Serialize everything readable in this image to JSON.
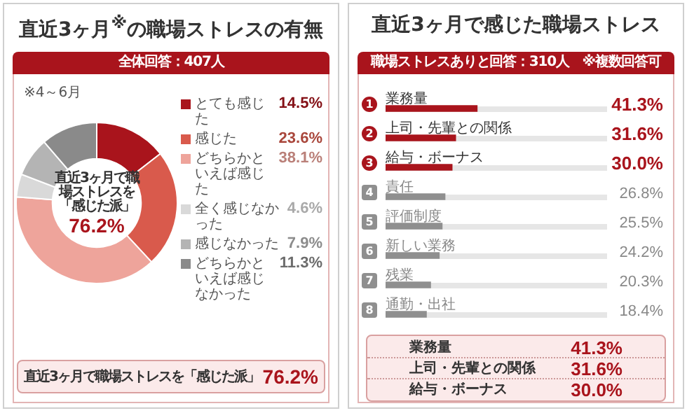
{
  "chart_data": [
    {
      "type": "donut",
      "title": "直近3ヶ月$^{※}$の職場ストレスの有無",
      "subtitle": "全体回答：407人",
      "categories": [
        "とても感じた",
        "感じた",
        "どちらかといえば感じた",
        "全く感じなかった",
        "感じなかった",
        "どちらかといえば感じなかった"
      ],
      "values": [
        14.5,
        23.6,
        38.1,
        4.6,
        7.9,
        11.3
      ],
      "colors": [
        "#a9141c",
        "#d95a4c",
        "#eea49b",
        "#d9d9d9",
        "#b4b4b4",
        "#8a8a8a"
      ],
      "value_labels": [
        "14.5%",
        "23.6%",
        "38.1%",
        "4.6%",
        "7.9%",
        "11.3%"
      ],
      "legend": "right",
      "annotations": [
        "※4～6月",
        "直近3ヶ月で職場ストレスを「感じた派」",
        "76.2%",
        "直近3ヶ月で職場ストレスを「感じた派」",
        "76.2%"
      ]
    },
    {
      "type": "bar",
      "orientation": "horizontal",
      "title": "直近3ヶ月で感じた職場ストレス",
      "subtitle": "職場ストレスありと回答：310人　※複数回答可",
      "categories": [
        "業務量",
        "上司・先輩との関係",
        "給与・ボーナス",
        "責任",
        "評価制度",
        "新しい業務",
        "残業",
        "通勤・出社"
      ],
      "values": [
        41.3,
        31.6,
        30.0,
        26.8,
        25.5,
        24.2,
        20.3,
        18.4
      ],
      "colors": [
        "#a9141c",
        "#a9141c",
        "#a9141c",
        "#8f8f8f",
        "#8f8f8f",
        "#8f8f8f",
        "#8f8f8f",
        "#8f8f8f"
      ],
      "value_labels": [
        "41.3%",
        "31.6%",
        "30.0%",
        "26.8%",
        "25.5%",
        "24.2%",
        "20.3%",
        "18.4%"
      ],
      "xlim": [
        0,
        100
      ],
      "tick_labels": false,
      "annotations": [
        "1",
        "2",
        "3",
        "4",
        "5",
        "6",
        "7",
        "8",
        "業務量",
        "41.3%",
        "上司・先輩との関係",
        "31.6%",
        "給与・ボーナス",
        "30.0%"
      ]
    }
  ]
}
